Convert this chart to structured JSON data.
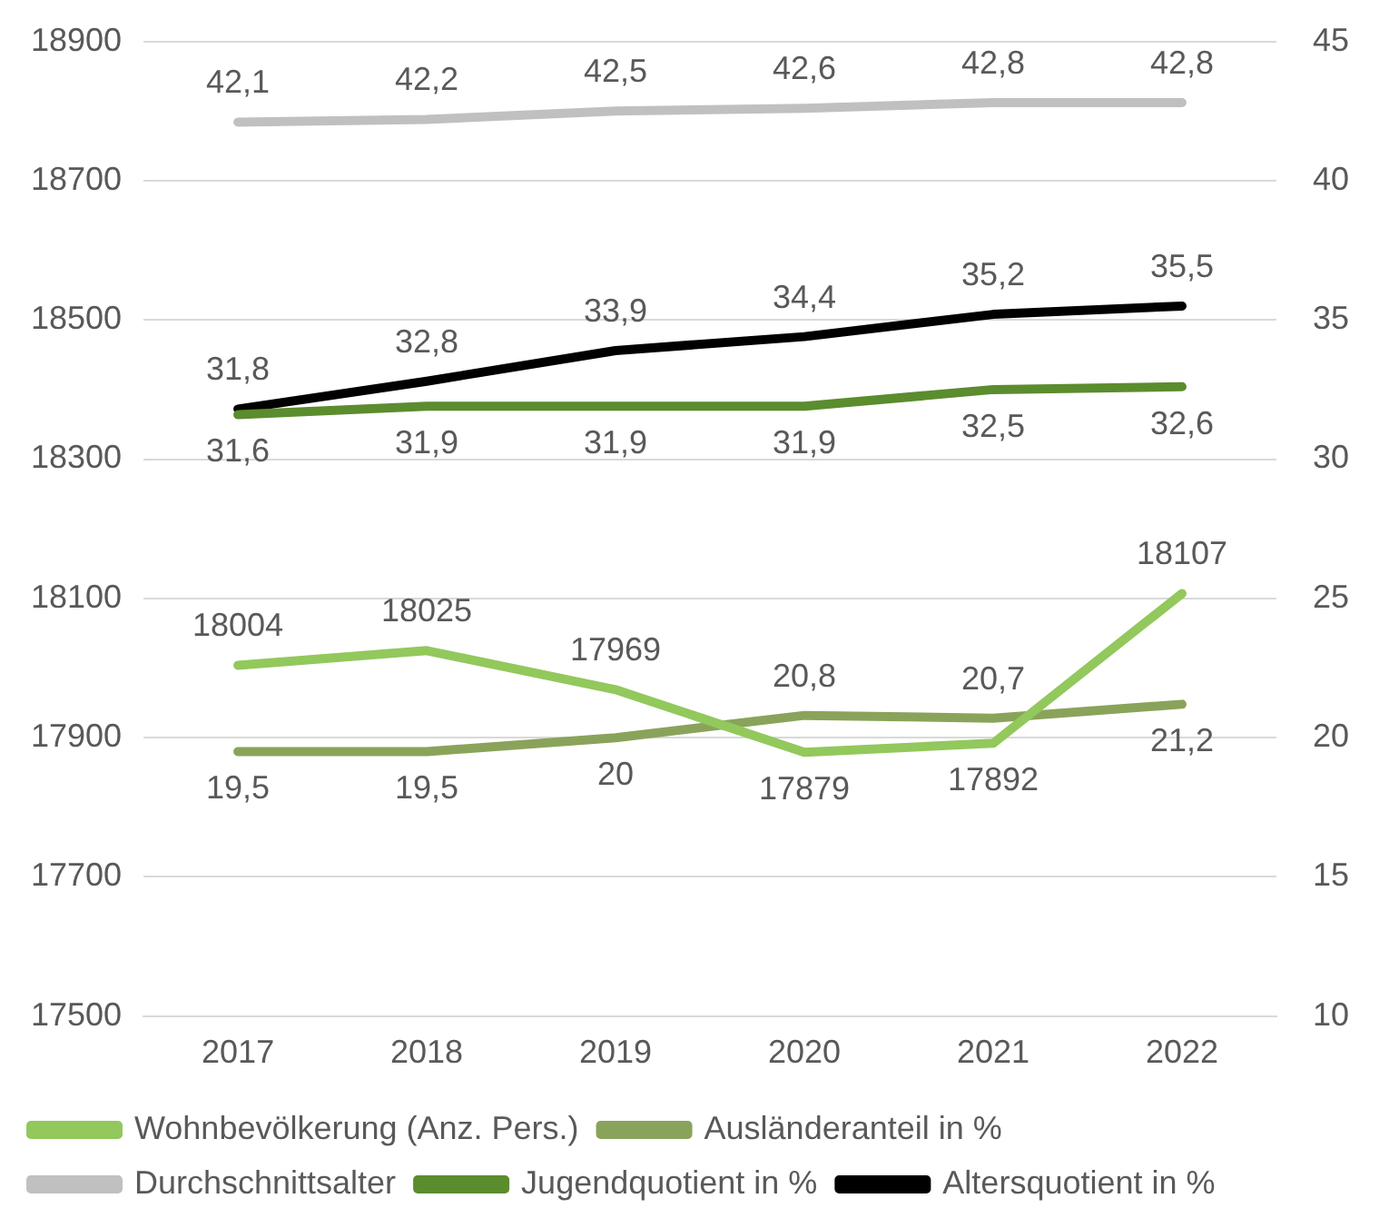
{
  "chart_data": {
    "type": "line",
    "categories": [
      "2017",
      "2018",
      "2019",
      "2020",
      "2021",
      "2022"
    ],
    "series": [
      {
        "name": "Wohnbevölkerung (Anz. Pers.)",
        "color": "#92c85c",
        "values": [
          18004,
          18025,
          17969,
          17879,
          17892,
          18107
        ],
        "value_labels": [
          "18004",
          "18025",
          "17969",
          "17879",
          "17892",
          "18107"
        ]
      },
      {
        "name": "Ausländeranteil in %",
        "color": "#8aa35a",
        "axis": "y2",
        "values": [
          19.5,
          19.5,
          20,
          20.8,
          20.7,
          21.2
        ],
        "value_labels": [
          "19,5",
          "19,5",
          "20",
          "20,8",
          "20,7",
          "21,2"
        ]
      },
      {
        "name": "Durchschnittsalter",
        "color": "#c0c0c0",
        "axis": "y2",
        "values": [
          42.1,
          42.2,
          42.5,
          42.6,
          42.8,
          42.8
        ],
        "value_labels": [
          "42,1",
          "42,2",
          "42,5",
          "42,6",
          "42,8",
          "42,8"
        ]
      },
      {
        "name": "Jugendquotient in %",
        "color": "#5b8c2e",
        "axis": "y2",
        "values": [
          31.6,
          31.9,
          31.9,
          31.9,
          32.5,
          32.6
        ],
        "value_labels": [
          "31,6",
          "31,9",
          "31,9",
          "31,9",
          "32,5",
          "32,6"
        ]
      },
      {
        "name": "Altersquotient in %",
        "color": "#000000",
        "axis": "y2",
        "values": [
          31.8,
          32.8,
          33.9,
          34.4,
          35.2,
          35.5
        ],
        "value_labels": [
          "31,8",
          "32,8",
          "33,9",
          "34,4",
          "35,2",
          "35,5"
        ]
      }
    ],
    "ylim": [
      17500,
      18900
    ],
    "yticks": [
      17500,
      17700,
      17900,
      18100,
      18300,
      18500,
      18700,
      18900
    ],
    "y2lim": [
      10,
      45
    ],
    "y2ticks": [
      10,
      15,
      20,
      25,
      30,
      35,
      40,
      45
    ],
    "grid": "y",
    "legend": "bottom",
    "marker": "none",
    "line_style": "solid"
  }
}
